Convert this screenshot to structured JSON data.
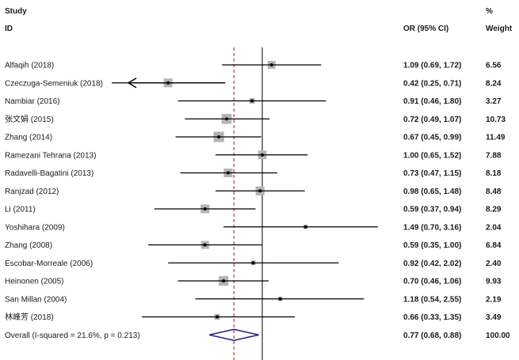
{
  "header": {
    "study": "Study",
    "id": "ID",
    "or_ci": "OR (95% CI)",
    "percent": "%",
    "weight": "Weight"
  },
  "colors": {
    "box": "#b3b3b3",
    "line": "#000000",
    "overall_line": "#8b1a1a",
    "diamond": "#1f1f8c"
  },
  "chart_data": {
    "type": "forest",
    "measure": "OR",
    "scale": "log",
    "null_value": 1,
    "xlim": [
      0.24,
      2.9
    ],
    "studies": [
      {
        "label": "Alfaqih (2018)",
        "or": 1.09,
        "lo": 0.69,
        "hi": 1.72,
        "ci_text": "1.09 (0.69, 1.72)",
        "weight": 6.56,
        "weight_text": "6.56"
      },
      {
        "label": "Czeczuga-Semeniuk (2018)",
        "or": 0.42,
        "lo": 0.25,
        "hi": 0.71,
        "ci_text": "0.42 (0.25, 0.71)",
        "weight": 8.24,
        "weight_text": "8.24",
        "arrow_left": true
      },
      {
        "label": "Nambiar (2016)",
        "or": 0.91,
        "lo": 0.46,
        "hi": 1.8,
        "ci_text": "0.91 (0.46, 1.80)",
        "weight": 3.27,
        "weight_text": "3.27"
      },
      {
        "label": "张文娟 (2015)",
        "or": 0.72,
        "lo": 0.49,
        "hi": 1.07,
        "ci_text": "0.72 (0.49, 1.07)",
        "weight": 10.73,
        "weight_text": "10.73"
      },
      {
        "label": "Zhang (2014)",
        "or": 0.67,
        "lo": 0.45,
        "hi": 0.99,
        "ci_text": "0.67 (0.45, 0.99)",
        "weight": 11.49,
        "weight_text": "11.49"
      },
      {
        "label": "Ramezani Tehrana (2013)",
        "or": 1.0,
        "lo": 0.65,
        "hi": 1.52,
        "ci_text": "1.00 (0.65, 1.52)",
        "weight": 7.88,
        "weight_text": "7.88"
      },
      {
        "label": "Radavelli-Bagatini (2013)",
        "or": 0.73,
        "lo": 0.47,
        "hi": 1.15,
        "ci_text": "0.73 (0.47, 1.15)",
        "weight": 8.18,
        "weight_text": "8.18"
      },
      {
        "label": "Ranjzad (2012)",
        "or": 0.98,
        "lo": 0.65,
        "hi": 1.48,
        "ci_text": "0.98 (0.65, 1.48)",
        "weight": 8.48,
        "weight_text": "8.48"
      },
      {
        "label": "Li (2011)",
        "or": 0.59,
        "lo": 0.37,
        "hi": 0.94,
        "ci_text": "0.59 (0.37, 0.94)",
        "weight": 8.29,
        "weight_text": "8.29"
      },
      {
        "label": "Yoshihara (2009)",
        "or": 1.49,
        "lo": 0.7,
        "hi": 3.16,
        "ci_text": "1.49 (0.70, 3.16)",
        "weight": 2.04,
        "weight_text": "2.04"
      },
      {
        "label": "Zhang (2008)",
        "or": 0.59,
        "lo": 0.35,
        "hi": 1.0,
        "ci_text": "0.59 (0.35, 1.00)",
        "weight": 6.84,
        "weight_text": "6.84"
      },
      {
        "label": "Escobar-Morreale (2006)",
        "or": 0.92,
        "lo": 0.42,
        "hi": 2.02,
        "ci_text": "0.92 (0.42, 2.02)",
        "weight": 2.4,
        "weight_text": "2.40"
      },
      {
        "label": "Heinonen (2005)",
        "or": 0.7,
        "lo": 0.46,
        "hi": 1.06,
        "ci_text": "0.70 (0.46, 1.06)",
        "weight": 9.93,
        "weight_text": "9.93"
      },
      {
        "label": "San Millan (2004)",
        "or": 1.18,
        "lo": 0.54,
        "hi": 2.55,
        "ci_text": "1.18 (0.54, 2.55)",
        "weight": 2.19,
        "weight_text": "2.19"
      },
      {
        "label": "林峰芳 (2018)",
        "or": 0.66,
        "lo": 0.33,
        "hi": 1.35,
        "ci_text": "0.66 (0.33, 1.35)",
        "weight": 3.49,
        "weight_text": "3.49"
      }
    ],
    "overall": {
      "label": "Overall  (I-squared = 21.6%, p = 0.213)",
      "or": 0.77,
      "lo": 0.68,
      "hi": 0.88,
      "ci_text": "0.77 (0.68, 0.88)",
      "weight": 100.0,
      "weight_text": "100.00"
    }
  }
}
